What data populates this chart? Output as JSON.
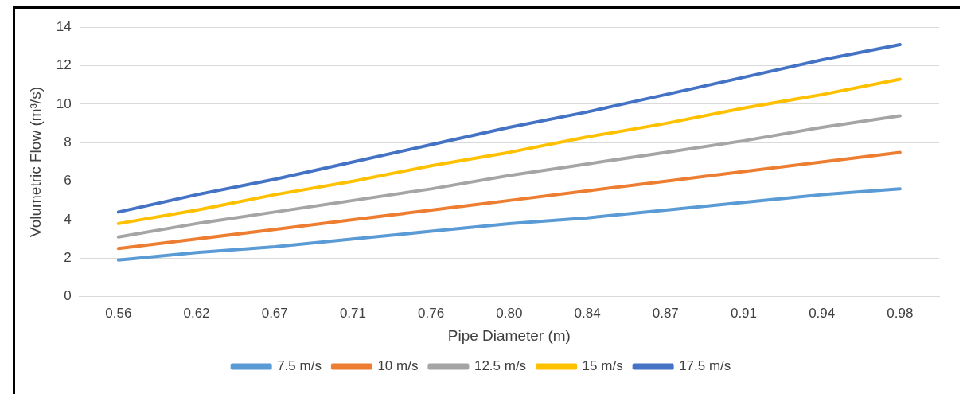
{
  "chart_data": {
    "type": "line",
    "xlabel": "Pipe Diameter (m)",
    "ylabel": "Volumetric Flow (m³/s)",
    "categories": [
      "0.56",
      "0.62",
      "0.67",
      "0.71",
      "0.76",
      "0.80",
      "0.84",
      "0.87",
      "0.91",
      "0.94",
      "0.98"
    ],
    "series": [
      {
        "name": "7.5 m/s",
        "color": "#5b9bd5",
        "values": [
          1.9,
          2.3,
          2.6,
          3.0,
          3.4,
          3.8,
          4.1,
          4.5,
          4.9,
          5.3,
          5.6
        ]
      },
      {
        "name": "10 m/s",
        "color": "#ed7d31",
        "values": [
          2.5,
          3.0,
          3.5,
          4.0,
          4.5,
          5.0,
          5.5,
          6.0,
          6.5,
          7.0,
          7.5
        ]
      },
      {
        "name": "12.5 m/s",
        "color": "#a5a5a5",
        "values": [
          3.1,
          3.8,
          4.4,
          5.0,
          5.6,
          6.3,
          6.9,
          7.5,
          8.1,
          8.8,
          9.4
        ]
      },
      {
        "name": "15 m/s",
        "color": "#ffc000",
        "values": [
          3.8,
          4.5,
          5.3,
          6.0,
          6.8,
          7.5,
          8.3,
          9.0,
          9.8,
          10.5,
          11.3
        ]
      },
      {
        "name": "17.5 m/s",
        "color": "#4472c4",
        "values": [
          4.4,
          5.3,
          6.1,
          7.0,
          7.9,
          8.8,
          9.6,
          10.5,
          11.4,
          12.3,
          13.1
        ]
      }
    ],
    "ylim": [
      0,
      14
    ],
    "yticks": [
      0,
      2,
      4,
      6,
      8,
      10,
      12,
      14
    ],
    "grid": "y",
    "legend": "bottom",
    "marker": "none",
    "line_style": "solid"
  }
}
